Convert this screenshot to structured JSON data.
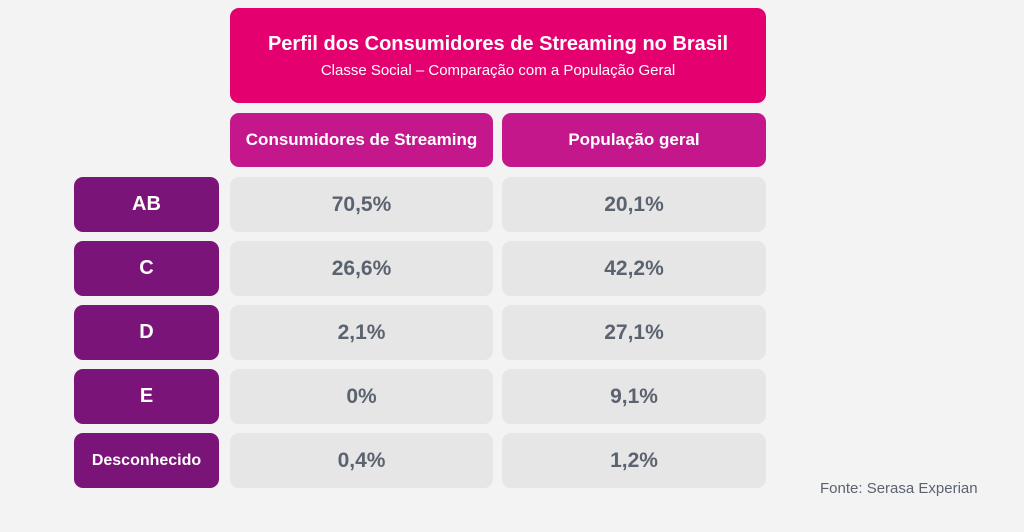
{
  "header": {
    "title": "Perfil dos Consumidores de Streaming no Brasil",
    "subtitle": "Classe Social – Comparação com a População Geral"
  },
  "table": {
    "columns": [
      "Consumidores de Streaming",
      "População geral"
    ],
    "rows": [
      {
        "label": "AB",
        "cells": [
          "70,5%",
          "20,1%"
        ]
      },
      {
        "label": "C",
        "cells": [
          "26,6%",
          "42,2%"
        ]
      },
      {
        "label": "D",
        "cells": [
          "2,1%",
          "27,1%"
        ]
      },
      {
        "label": "E",
        "cells": [
          "0%",
          "9,1%"
        ]
      },
      {
        "label": "Desconhecido",
        "cells": [
          "0,4%",
          "1,2%"
        ]
      }
    ]
  },
  "source": "Fonte: Serasa Experian"
}
